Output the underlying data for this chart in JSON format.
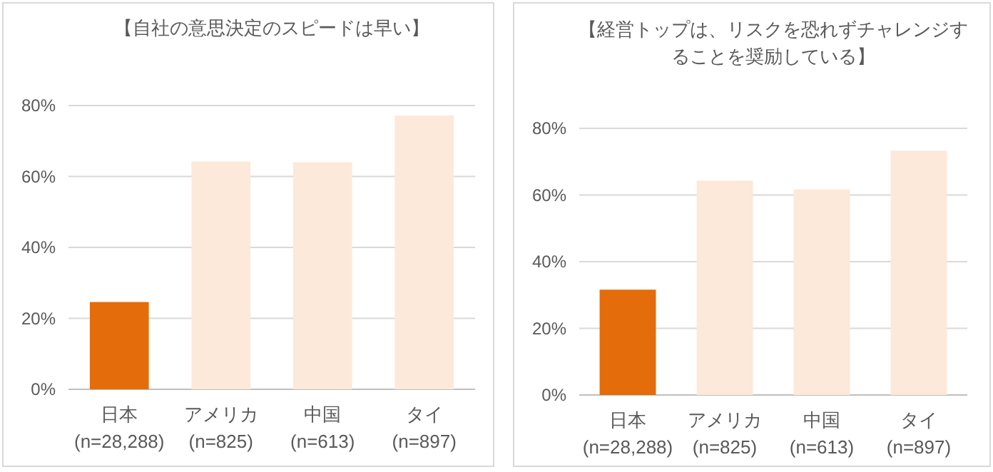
{
  "chart_data": [
    {
      "type": "bar",
      "title": "【自社の意思決定のスピードは早い】",
      "categories": [
        "日本\n(n=28,288)",
        "アメリカ\n(n=825)",
        "中国\n(n=613)",
        "タイ\n(n=897)"
      ],
      "values": [
        0.246,
        0.642,
        0.64,
        0.772
      ],
      "colors": [
        "#e46c0a",
        "#fde9d9",
        "#fde9d9",
        "#fde9d9"
      ],
      "ylim": [
        0,
        0.8
      ],
      "yticks": [
        {
          "value": 0,
          "label": "0%"
        },
        {
          "value": 0.2,
          "label": "20%"
        },
        {
          "value": 0.4,
          "label": "40%"
        },
        {
          "value": 0.6,
          "label": "60%"
        },
        {
          "value": 0.8,
          "label": "80%"
        }
      ],
      "grid": "y"
    },
    {
      "type": "bar",
      "title": "【経営トップは、リスクを恐れずチャレンジすることを奨励している】",
      "categories": [
        "日本\n(n=28,288)",
        "アメリカ\n(n=825)",
        "中国\n(n=613)",
        "タイ\n(n=897)"
      ],
      "values": [
        0.316,
        0.643,
        0.617,
        0.733
      ],
      "colors": [
        "#e46c0a",
        "#fde9d9",
        "#fde9d9",
        "#fde9d9"
      ],
      "ylim": [
        0,
        0.8
      ],
      "yticks": [
        {
          "value": 0,
          "label": "0%"
        },
        {
          "value": 0.2,
          "label": "20%"
        },
        {
          "value": 0.4,
          "label": "40%"
        },
        {
          "value": 0.6,
          "label": "60%"
        },
        {
          "value": 0.8,
          "label": "80%"
        }
      ],
      "grid": "y"
    }
  ]
}
